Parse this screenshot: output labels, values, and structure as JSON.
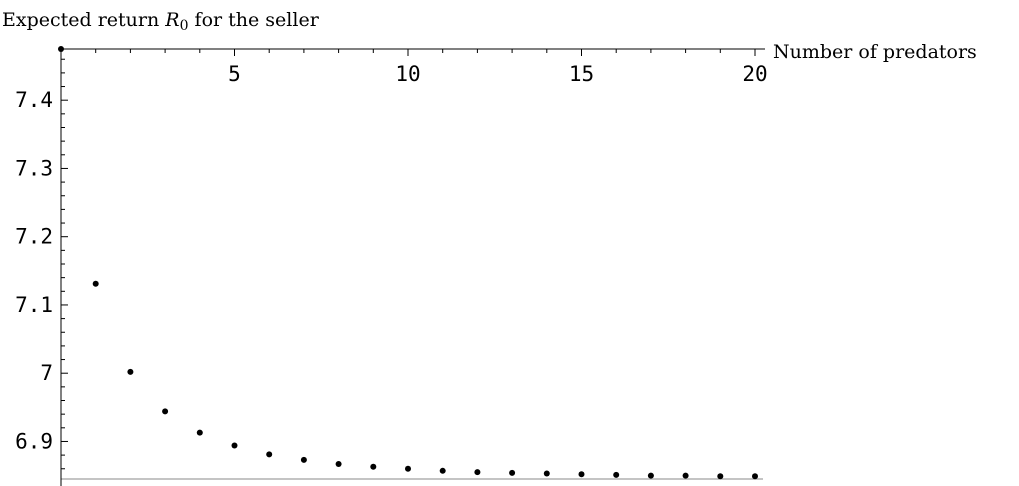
{
  "chart_data": {
    "type": "scatter",
    "title": "",
    "ylabel": {
      "prefix": "Expected return ",
      "symbol": "R",
      "subscript": "0",
      "suffix": " for the seller"
    },
    "xlabel": "Number of predators",
    "xlim": [
      0,
      20
    ],
    "ylim": [
      6.845,
      7.475
    ],
    "x_ticks": [
      5,
      10,
      15,
      20
    ],
    "x_tick_labels": [
      "5",
      "10",
      "15",
      "20"
    ],
    "y_ticks": [
      6.9,
      7.0,
      7.1,
      7.2,
      7.3,
      7.4
    ],
    "y_tick_labels": [
      "6.9",
      "7",
      "7.1",
      "7.2",
      "7.3",
      "7.4"
    ],
    "reference_line": {
      "y": 6.845,
      "color": "#a0a0a0"
    },
    "grid": false,
    "series": [
      {
        "color": "#000000",
        "x": [
          0,
          1,
          2,
          3,
          4,
          5,
          6,
          7,
          8,
          9,
          10,
          11,
          12,
          13,
          14,
          15,
          16,
          17,
          18,
          19,
          20
        ],
        "y": [
          7.475,
          7.131,
          7.002,
          6.944,
          6.913,
          6.894,
          6.881,
          6.873,
          6.867,
          6.863,
          6.86,
          6.857,
          6.855,
          6.854,
          6.853,
          6.852,
          6.851,
          6.85,
          6.85,
          6.849,
          6.849
        ]
      }
    ]
  }
}
